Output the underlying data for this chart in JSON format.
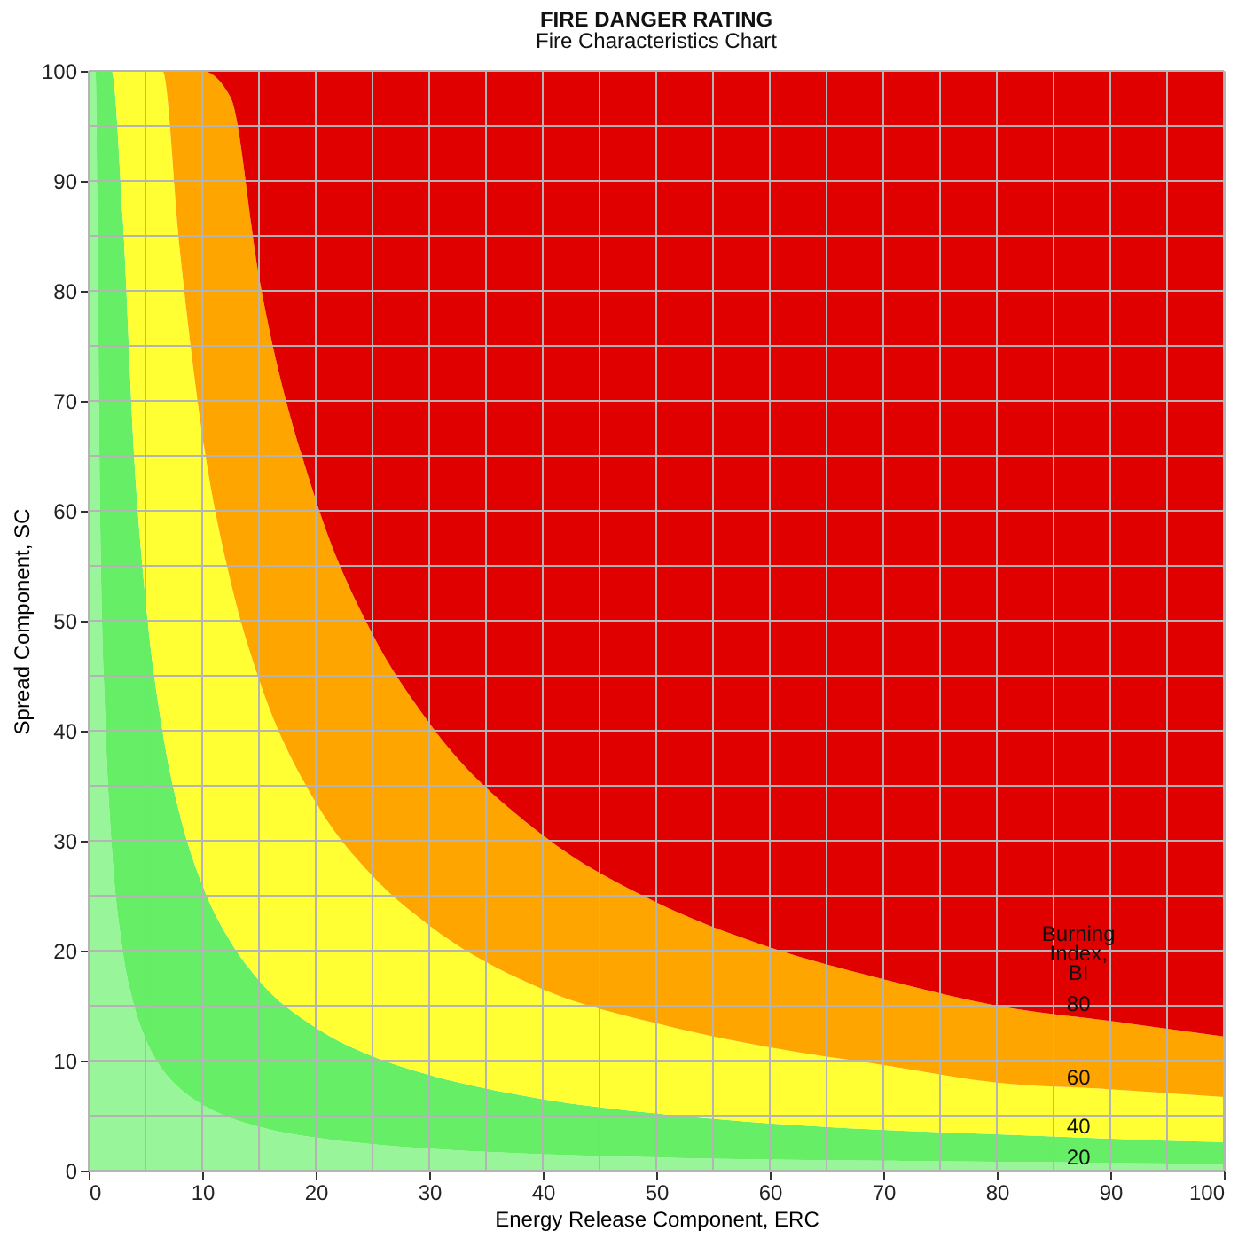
{
  "chart_data": {
    "type": "area",
    "title": "FIRE DANGER RATING",
    "subtitle": "Fire Characteristics Chart",
    "xlabel": "Energy Release Component, ERC",
    "ylabel": "Spread Component, SC",
    "stacked": true,
    "grid": true,
    "x": [
      0,
      0.6,
      1,
      1.5,
      2,
      3,
      4,
      5,
      6.5,
      8,
      10,
      12.5,
      15,
      20,
      25,
      30,
      40,
      50,
      60,
      70,
      80,
      90,
      100
    ],
    "xlim": [
      0,
      100
    ],
    "ylim": [
      0,
      100
    ],
    "xticks": [
      0,
      {
        "value": 5,
        "label": null
      },
      10,
      {
        "value": 15,
        "label": null
      },
      20,
      {
        "value": 25,
        "label": null
      },
      30,
      {
        "value": 35,
        "label": null
      },
      40,
      {
        "value": 45,
        "label": null
      },
      50,
      {
        "value": 55,
        "label": null
      },
      60,
      {
        "value": 65,
        "label": null
      },
      70,
      {
        "value": 75,
        "label": null
      },
      80,
      {
        "value": 85,
        "label": null
      },
      90,
      {
        "value": 95,
        "label": null
      },
      100
    ],
    "yticks": [
      0,
      {
        "value": 5,
        "label": null
      },
      10,
      {
        "value": 15,
        "label": null
      },
      20,
      {
        "value": 25,
        "label": null
      },
      30,
      {
        "value": 35,
        "label": null
      },
      40,
      {
        "value": 45,
        "label": null
      },
      50,
      {
        "value": 55,
        "label": null
      },
      60,
      {
        "value": 65,
        "label": null
      },
      70,
      {
        "value": 75,
        "label": null
      },
      80,
      {
        "value": 85,
        "label": null
      },
      90,
      {
        "value": 95,
        "label": null
      },
      100
    ],
    "series": [
      {
        "color": "#99f599",
        "values": [
          100,
          100,
          60,
          40,
          30,
          20,
          15,
          12,
          9.2,
          7.5,
          6,
          4.8,
          4,
          3,
          2.4,
          2,
          1.5,
          1.2,
          1,
          0.9,
          0.8,
          0.7,
          0.6
        ]
      },
      {
        "color": "#66ee66",
        "values": [
          0,
          0,
          40,
          60,
          70,
          66.7,
          50,
          40,
          30.8,
          25,
          20,
          16,
          13.3,
          10,
          8,
          6.7,
          5,
          4,
          3.3,
          2.8,
          2.5,
          2.2,
          2
        ]
      },
      {
        "color": "#ffff33",
        "values": [
          0,
          0,
          0,
          0,
          0,
          13.3,
          35,
          48,
          60,
          51.5,
          41,
          32.8,
          27.4,
          20.5,
          16.4,
          13.6,
          10,
          8.2,
          6.9,
          5.9,
          4.7,
          4.5,
          4.1
        ]
      },
      {
        "color": "#ffa500",
        "values": [
          0,
          0,
          0,
          0,
          0,
          0,
          0,
          0,
          0,
          16,
          33,
          44,
          36.6,
          27.5,
          22,
          18.4,
          14,
          11,
          9.1,
          7.8,
          7,
          6.2,
          5.5
        ]
      },
      {
        "color": "#e00000",
        "values": [
          0,
          0,
          0,
          0,
          0,
          0,
          0,
          0,
          0,
          0,
          0,
          2.4,
          18.7,
          39,
          51.2,
          59.3,
          69.5,
          75.6,
          79.7,
          82.6,
          85,
          86.4,
          87.8
        ]
      }
    ],
    "annotations": [
      "Burning Index, BI",
      "80",
      "60",
      "40",
      "20"
    ]
  }
}
